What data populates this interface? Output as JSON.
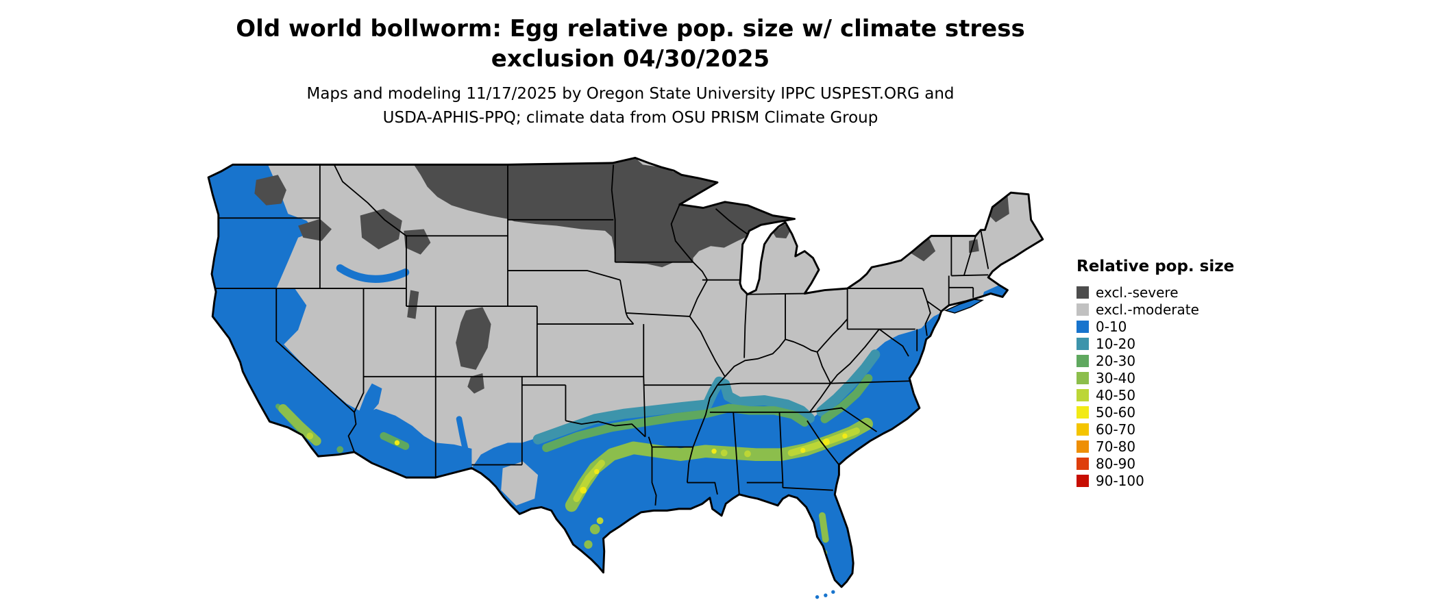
{
  "title": {
    "line1": "Old world bollworm: Egg relative pop. size w/ climate stress",
    "line2": "exclusion 04/30/2025"
  },
  "subtitle": {
    "line1": "Maps and modeling 11/17/2025 by Oregon State University IPPC USPEST.ORG and",
    "line2": "USDA-APHIS-PPQ; climate data from OSU PRISM Climate Group"
  },
  "map": {
    "region": "Continental United States"
  },
  "legend": {
    "title": "Relative pop. size",
    "items": [
      {
        "label": "excl.-severe",
        "color": "#4D4D4D"
      },
      {
        "label": "excl.-moderate",
        "color": "#C1C1C1"
      },
      {
        "label": "0-10",
        "color": "#1874CD"
      },
      {
        "label": "10-20",
        "color": "#3D94AB"
      },
      {
        "label": "20-30",
        "color": "#5FA85F"
      },
      {
        "label": "30-40",
        "color": "#8CBE4C"
      },
      {
        "label": "40-50",
        "color": "#BCD636"
      },
      {
        "label": "50-60",
        "color": "#F2EA16"
      },
      {
        "label": "60-70",
        "color": "#F4C400"
      },
      {
        "label": "70-80",
        "color": "#EE8F06"
      },
      {
        "label": "80-90",
        "color": "#DE3E0B"
      },
      {
        "label": "90-100",
        "color": "#C70E02"
      }
    ]
  },
  "colors": {
    "background": "#FFFFFF",
    "border": "#000000"
  }
}
